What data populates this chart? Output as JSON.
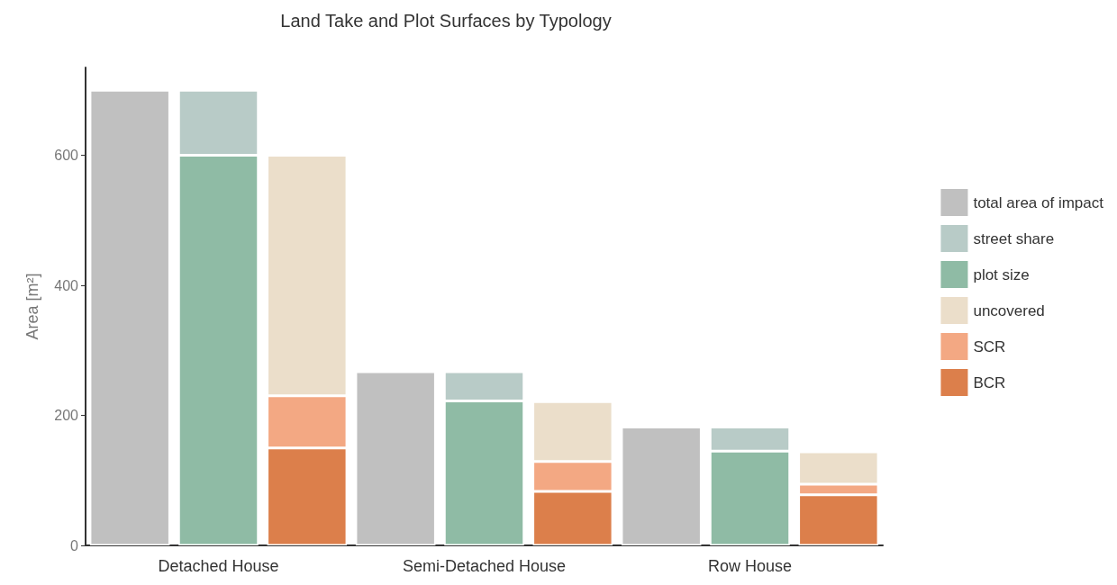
{
  "chart_data": {
    "type": "bar",
    "title": "Land Take and Plot Surfaces by Typology",
    "ylabel": "Area [m²]",
    "categories": [
      null,
      "Detached House",
      null,
      null,
      "Semi-Detached House",
      null,
      null,
      "Row House",
      null
    ],
    "stacked": true,
    "series": [
      {
        "name": "total area of impact",
        "color": "#c0c0c0",
        "values": [
          700,
          null,
          null,
          267,
          null,
          null,
          182,
          null,
          null
        ]
      },
      {
        "name": "plot size",
        "color": "#8fbba5",
        "values": [
          null,
          600,
          null,
          null,
          222,
          null,
          null,
          145,
          null
        ]
      },
      {
        "name": "street share",
        "color": "#b8cbc7",
        "values": [
          null,
          100,
          null,
          null,
          45,
          null,
          null,
          37,
          null
        ]
      },
      {
        "name": "BCR",
        "color": "#dc7f4b",
        "values": [
          null,
          null,
          150,
          null,
          null,
          83,
          null,
          null,
          78
        ]
      },
      {
        "name": "SCR",
        "color": "#f3a883",
        "values": [
          null,
          null,
          80,
          null,
          null,
          46,
          null,
          null,
          16
        ]
      },
      {
        "name": "uncovered",
        "color": "#ebdeca",
        "values": [
          null,
          null,
          370,
          null,
          null,
          92,
          null,
          null,
          50
        ]
      }
    ],
    "ylim": [
      0,
      735
    ],
    "yticks": [
      0,
      200,
      400,
      600
    ],
    "grid": false,
    "legend": "right"
  }
}
